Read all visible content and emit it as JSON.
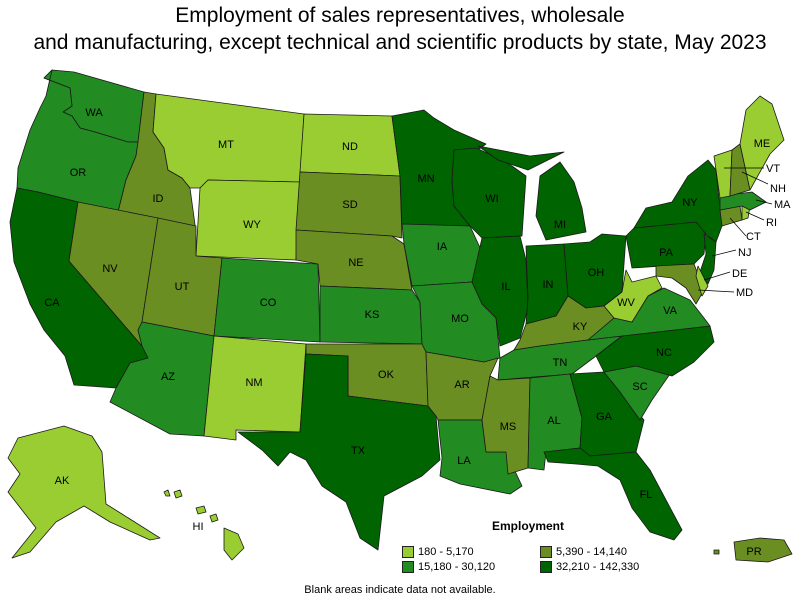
{
  "title_line1": "Employment of sales representatives, wholesale",
  "title_line2": "and manufacturing, except technical and scientific products by state, May 2023",
  "legend": {
    "title": "Employment",
    "bins": [
      {
        "label": "180 - 5,170",
        "color": "#9acd32"
      },
      {
        "label": "5,390 - 14,140",
        "color": "#6b8e23"
      },
      {
        "label": "15,180 - 30,120",
        "color": "#228b22"
      },
      {
        "label": "32,210 - 142,330",
        "color": "#006400"
      }
    ]
  },
  "footnote": "Blank areas indicate data not available.",
  "states": {
    "WA": {
      "label": "WA",
      "bin": 2
    },
    "OR": {
      "label": "OR",
      "bin": 2
    },
    "CA": {
      "label": "CA",
      "bin": 3
    },
    "ID": {
      "label": "ID",
      "bin": 1
    },
    "NV": {
      "label": "NV",
      "bin": 1
    },
    "MT": {
      "label": "MT",
      "bin": 0
    },
    "WY": {
      "label": "WY",
      "bin": 0
    },
    "UT": {
      "label": "UT",
      "bin": 1
    },
    "AZ": {
      "label": "AZ",
      "bin": 2
    },
    "CO": {
      "label": "CO",
      "bin": 2
    },
    "NM": {
      "label": "NM",
      "bin": 0
    },
    "ND": {
      "label": "ND",
      "bin": 0
    },
    "SD": {
      "label": "SD",
      "bin": 1
    },
    "NE": {
      "label": "NE",
      "bin": 1
    },
    "KS": {
      "label": "KS",
      "bin": 2
    },
    "OK": {
      "label": "OK",
      "bin": 1
    },
    "TX": {
      "label": "TX",
      "bin": 3
    },
    "MN": {
      "label": "MN",
      "bin": 3
    },
    "IA": {
      "label": "IA",
      "bin": 2
    },
    "MO": {
      "label": "MO",
      "bin": 2
    },
    "AR": {
      "label": "AR",
      "bin": 1
    },
    "LA": {
      "label": "LA",
      "bin": 2
    },
    "WI": {
      "label": "WI",
      "bin": 3
    },
    "IL": {
      "label": "IL",
      "bin": 3
    },
    "MI": {
      "label": "MI",
      "bin": 3
    },
    "IN": {
      "label": "IN",
      "bin": 3
    },
    "OH": {
      "label": "OH",
      "bin": 3
    },
    "KY": {
      "label": "KY",
      "bin": 1
    },
    "TN": {
      "label": "TN",
      "bin": 2
    },
    "MS": {
      "label": "MS",
      "bin": 1
    },
    "AL": {
      "label": "AL",
      "bin": 2
    },
    "GA": {
      "label": "GA",
      "bin": 3
    },
    "FL": {
      "label": "FL",
      "bin": 3
    },
    "SC": {
      "label": "SC",
      "bin": 2
    },
    "NC": {
      "label": "NC",
      "bin": 3
    },
    "VA": {
      "label": "VA",
      "bin": 2
    },
    "WV": {
      "label": "WV",
      "bin": 0
    },
    "PA": {
      "label": "PA",
      "bin": 3
    },
    "NY": {
      "label": "NY",
      "bin": 3
    },
    "NJ": {
      "label": "NJ",
      "bin": 3
    },
    "DE": {
      "label": "DE",
      "bin": 0
    },
    "MD": {
      "label": "MD",
      "bin": 1
    },
    "CT": {
      "label": "CT",
      "bin": 1
    },
    "RI": {
      "label": "RI",
      "bin": 0
    },
    "MA": {
      "label": "MA",
      "bin": 2
    },
    "VT": {
      "label": "VT",
      "bin": 0
    },
    "NH": {
      "label": "NH",
      "bin": 1
    },
    "ME": {
      "label": "ME",
      "bin": 0
    },
    "AK": {
      "label": "AK",
      "bin": 0
    },
    "HI": {
      "label": "HI",
      "bin": 0
    },
    "PR": {
      "label": "PR",
      "bin": 1
    }
  }
}
